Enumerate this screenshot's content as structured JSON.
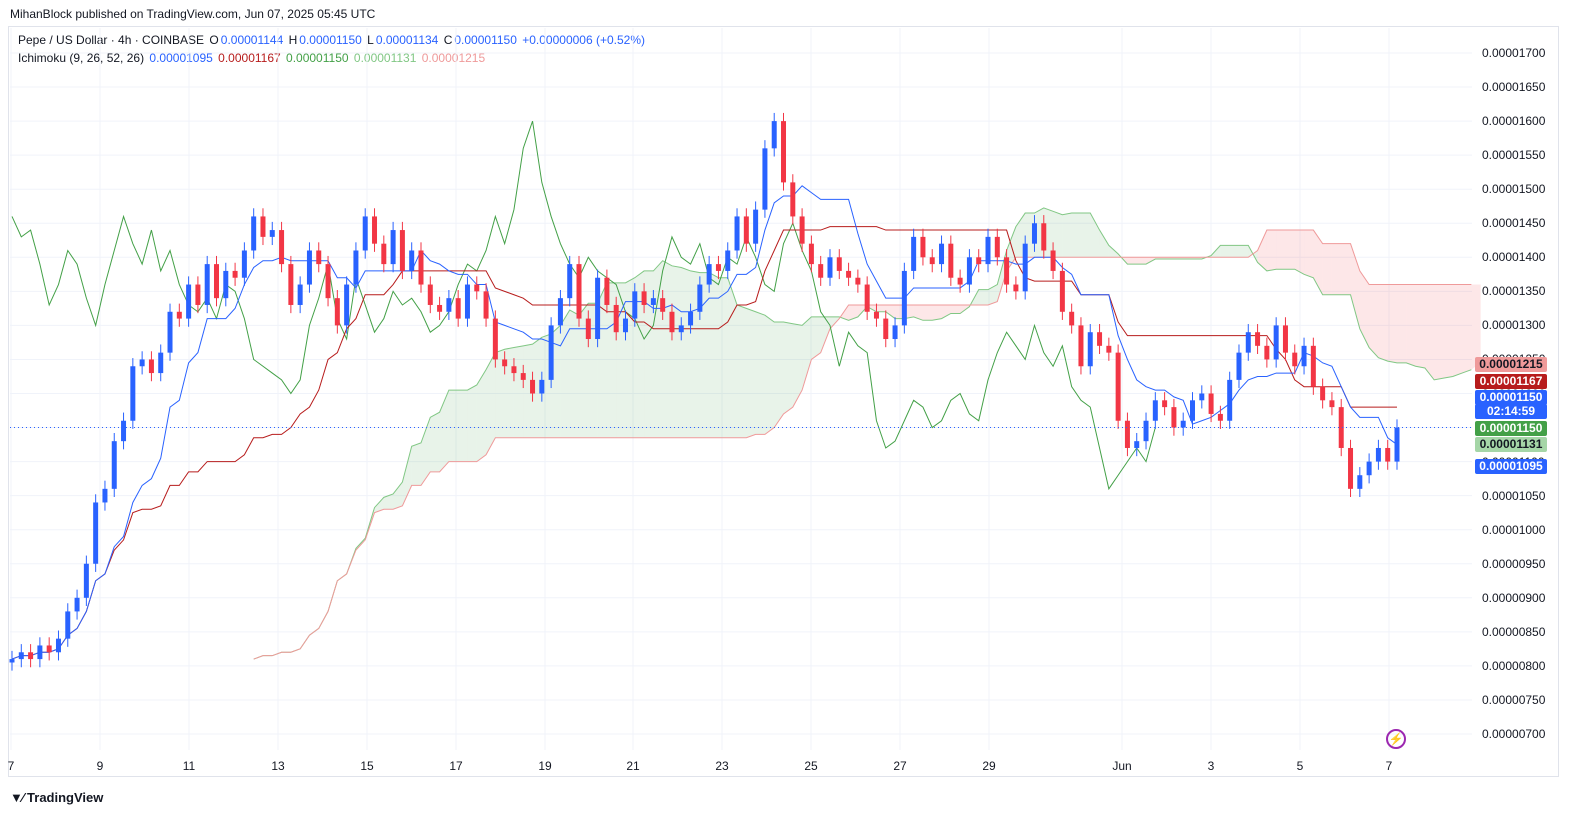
{
  "header": {
    "published": "MihanBlock published on TradingView.com, Jun 07, 2025 05:45 UTC"
  },
  "legend": {
    "symbol": "Pepe / US Dollar · 4h · COINBASE",
    "o_label": "O",
    "o_value": "0.00001144",
    "h_label": "H",
    "h_value": "0.00001150",
    "l_label": "L",
    "l_value": "0.00001134",
    "c_label": "C",
    "c_value": "0.00001150",
    "change": "+0.00000006 (+0.52%)",
    "indicator": "Ichimoku (9, 26, 52, 26)",
    "ind_values": [
      "0.00001095",
      "0.00001167",
      "0.00001150",
      "0.00001131",
      "0.00001215"
    ],
    "ind_colors": [
      "#2962ff",
      "#b71c1c",
      "#43a047",
      "#81c784",
      "#ef9a9a"
    ]
  },
  "footer": {
    "brand": "TradingView"
  },
  "colors": {
    "up": "#2962ff",
    "down": "#f23645",
    "tenkan": "#2962ff",
    "kijun": "#b71c1c",
    "chikou": "#43a047",
    "spanA": "#81c784",
    "spanB": "#ef9a9a"
  },
  "tags": [
    {
      "text": "0.00001215",
      "color": "#ef9a9a",
      "textcolor": "#131722"
    },
    {
      "text": "0.00001167",
      "color": "#b71c1c"
    },
    {
      "text": "0.00001150",
      "color": "#2962ff"
    },
    {
      "text": "02:14:59",
      "color": "#2962ff"
    },
    {
      "text": "0.00001150",
      "color": "#43a047"
    },
    {
      "text": "0.00001131",
      "color": "#a5d6a7",
      "textcolor": "#131722"
    },
    {
      "text": "0.00001095",
      "color": "#2962ff"
    }
  ],
  "chart_data": {
    "type": "candlestick",
    "title": "Pepe / US Dollar · 4h · COINBASE",
    "ylim": [
      6.7e-06,
      1.73e-05
    ],
    "y_ticks": [
      "0.00000700",
      "0.00000750",
      "0.00000800",
      "0.00000850",
      "0.00000900",
      "0.00000950",
      "0.00001000",
      "0.00001050",
      "0.00001100",
      "0.00001150",
      "0.00001200",
      "0.00001250",
      "0.00001300",
      "0.00001350",
      "0.00001400",
      "0.00001450",
      "0.00001500",
      "0.00001550",
      "0.00001600",
      "0.00001650",
      "0.00001700"
    ],
    "x_ticks": [
      "7",
      "9",
      "11",
      "13",
      "15",
      "17",
      "19",
      "21",
      "23",
      "25",
      "27",
      "29",
      "Jun",
      "3",
      "5",
      "7"
    ],
    "last_price": 1.15e-05,
    "closes": [
      8.1,
      8.2,
      8.1,
      8.3,
      8.2,
      8.4,
      8.8,
      9.0,
      9.5,
      10.4,
      10.6,
      11.3,
      11.6,
      12.4,
      12.5,
      12.3,
      12.6,
      13.2,
      13.1,
      13.6,
      13.3,
      13.9,
      13.4,
      13.8,
      13.7,
      14.1,
      14.6,
      14.3,
      14.4,
      13.9,
      13.3,
      13.6,
      14.1,
      13.9,
      13.4,
      13.0,
      13.6,
      14.1,
      14.6,
      14.2,
      13.9,
      14.4,
      13.8,
      14.1,
      13.6,
      13.3,
      13.2,
      13.4,
      13.1,
      13.6,
      13.5,
      13.1,
      12.5,
      12.4,
      12.3,
      12.2,
      12.0,
      12.2,
      13.0,
      13.4,
      13.9,
      13.1,
      12.8,
      13.7,
      13.3,
      12.9,
      13.1,
      13.5,
      13.3,
      13.4,
      13.2,
      12.9,
      13.0,
      13.2,
      13.6,
      13.9,
      13.8,
      14.1,
      14.6,
      14.2,
      14.7,
      15.6,
      16.0,
      15.1,
      14.6,
      14.2,
      13.9,
      13.7,
      14.0,
      13.8,
      13.7,
      13.6,
      13.2,
      13.1,
      12.8,
      13.0,
      13.8,
      14.3,
      14.0,
      13.9,
      14.2,
      13.7,
      13.6,
      14.0,
      13.9,
      14.3,
      14.0,
      13.6,
      13.5,
      14.2,
      14.5,
      14.1,
      13.8,
      13.2,
      13.0,
      12.4,
      12.9,
      12.7,
      12.6,
      11.6,
      11.2,
      11.3,
      11.6,
      11.9,
      11.8,
      11.5,
      11.6,
      11.9,
      12.0,
      11.7,
      11.6,
      12.2,
      12.6,
      12.9,
      12.7,
      12.5,
      13.0,
      12.6,
      12.4,
      12.7,
      12.1,
      11.9,
      11.8,
      11.2,
      10.6,
      10.8,
      11.0,
      11.2,
      11.0,
      11.5
    ]
  }
}
